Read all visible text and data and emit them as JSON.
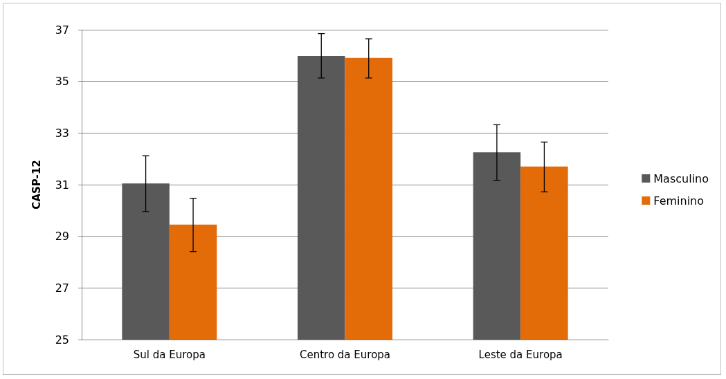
{
  "chart_data": {
    "type": "bar",
    "ylabel": "CASP-12",
    "categories": [
      "Sul da Europa",
      "Centro da Europa",
      "Leste da Europa"
    ],
    "series": [
      {
        "name": "Masculino",
        "color": "#595959",
        "values": [
          31.05,
          35.98,
          32.25
        ],
        "errors": [
          [
            29.96,
            32.12
          ],
          [
            35.13,
            36.85
          ],
          [
            31.17,
            33.32
          ]
        ]
      },
      {
        "name": "Feminino",
        "color": "#e36c09",
        "values": [
          29.45,
          35.91,
          31.7
        ],
        "errors": [
          [
            28.41,
            30.47
          ],
          [
            35.13,
            36.65
          ],
          [
            30.72,
            32.65
          ]
        ]
      }
    ],
    "ylim": [
      25,
      37
    ],
    "yticks": [
      25,
      27,
      29,
      31,
      33,
      35,
      37
    ],
    "grid": "y",
    "legend": "right"
  }
}
